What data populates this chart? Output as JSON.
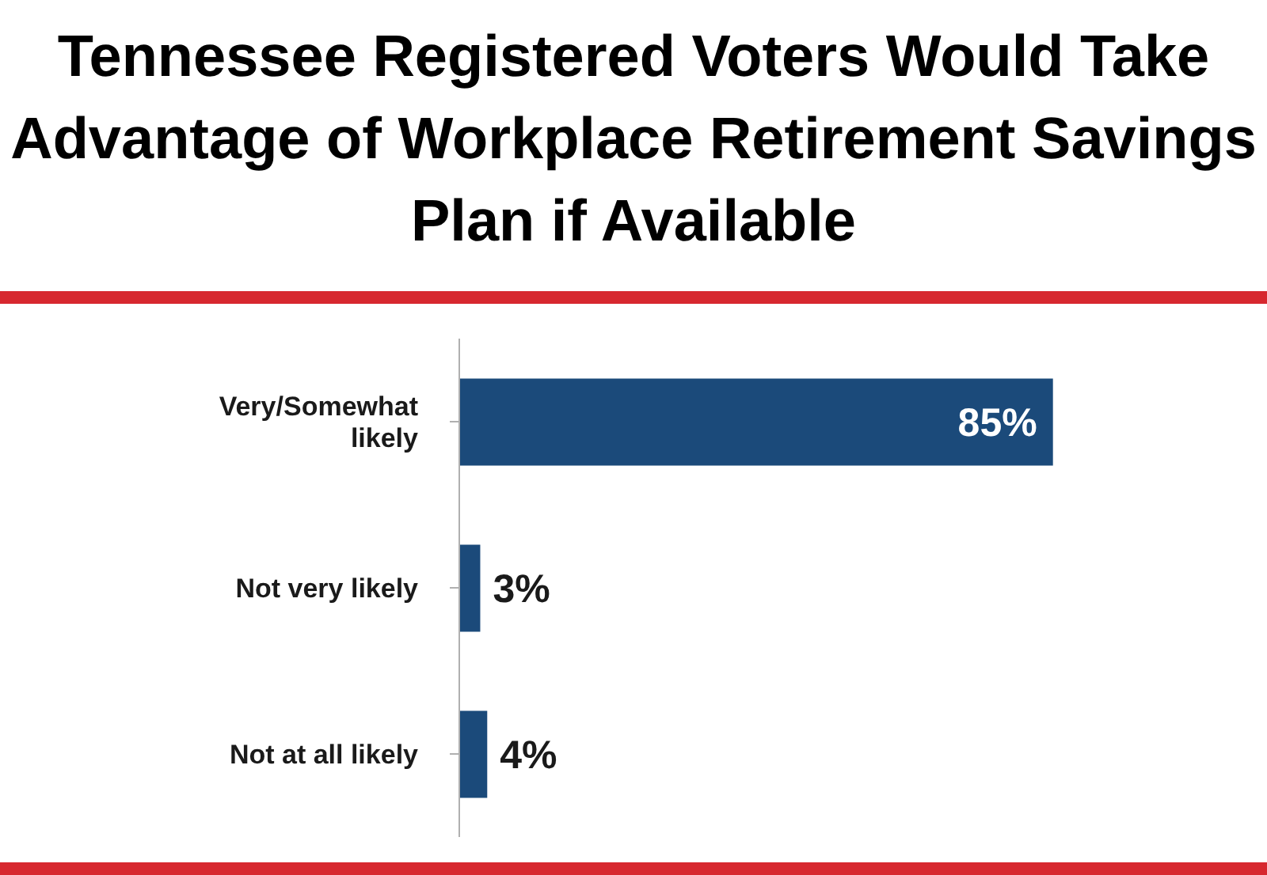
{
  "chart_data": {
    "type": "bar",
    "orientation": "horizontal",
    "title": "Tennessee Registered Voters Would Take Advantage of Workplace Retirement Savings Plan if Available",
    "categories": [
      "Very/Somewhat likely",
      "Not very likely",
      "Not at all likely"
    ],
    "values": [
      85,
      3,
      4
    ],
    "color": "#1b4a7a",
    "value_labels": [
      "85%",
      "3%",
      "4%"
    ],
    "tick_labels": "y",
    "grid": false,
    "legend": false
  }
}
